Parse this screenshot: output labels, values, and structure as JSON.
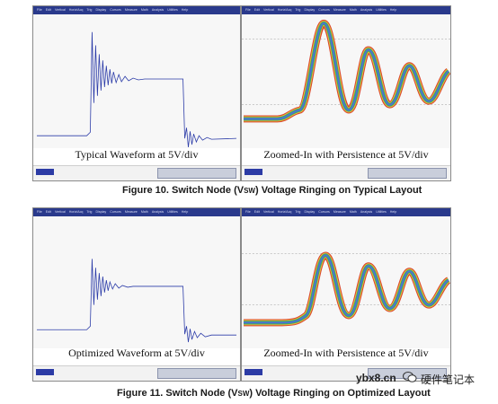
{
  "menu_items": [
    "File",
    "Edit",
    "Vertical",
    "Horiz/Acq",
    "Trig",
    "Display",
    "Cursors",
    "Measure",
    "Math",
    "Analysis",
    "Utilities",
    "Help"
  ],
  "figure10": {
    "typical_caption": "Typical Waveform at 5V/div",
    "zoomed_caption": "Zoomed-In with Persistence at 5V/div",
    "title_prefix": "Figure 10.   Switch Node (V",
    "title_sub": "SW",
    "title_suffix": ") Voltage Ringing on Typical Layout"
  },
  "figure11": {
    "typical_caption": "Optimized Waveform at 5V/div",
    "zoomed_caption": "Zoomed-In with Persistence at 5V/div",
    "title_prefix": "Figure 11.   Switch Node (V",
    "title_sub": "SW",
    "title_suffix": ") Voltage Ringing on Optimized Layout"
  },
  "watermark": {
    "site": "ybx8.cn",
    "label": "硬件笔记本"
  },
  "colors": {
    "menubar": "#2a3a8c",
    "trace": "#2c3ca8",
    "persistence_outer": "#d8452e",
    "persistence_mid": "#e9b53a",
    "persistence_inner": "#3aa86a",
    "persistence_core": "#4f6fd8"
  }
}
